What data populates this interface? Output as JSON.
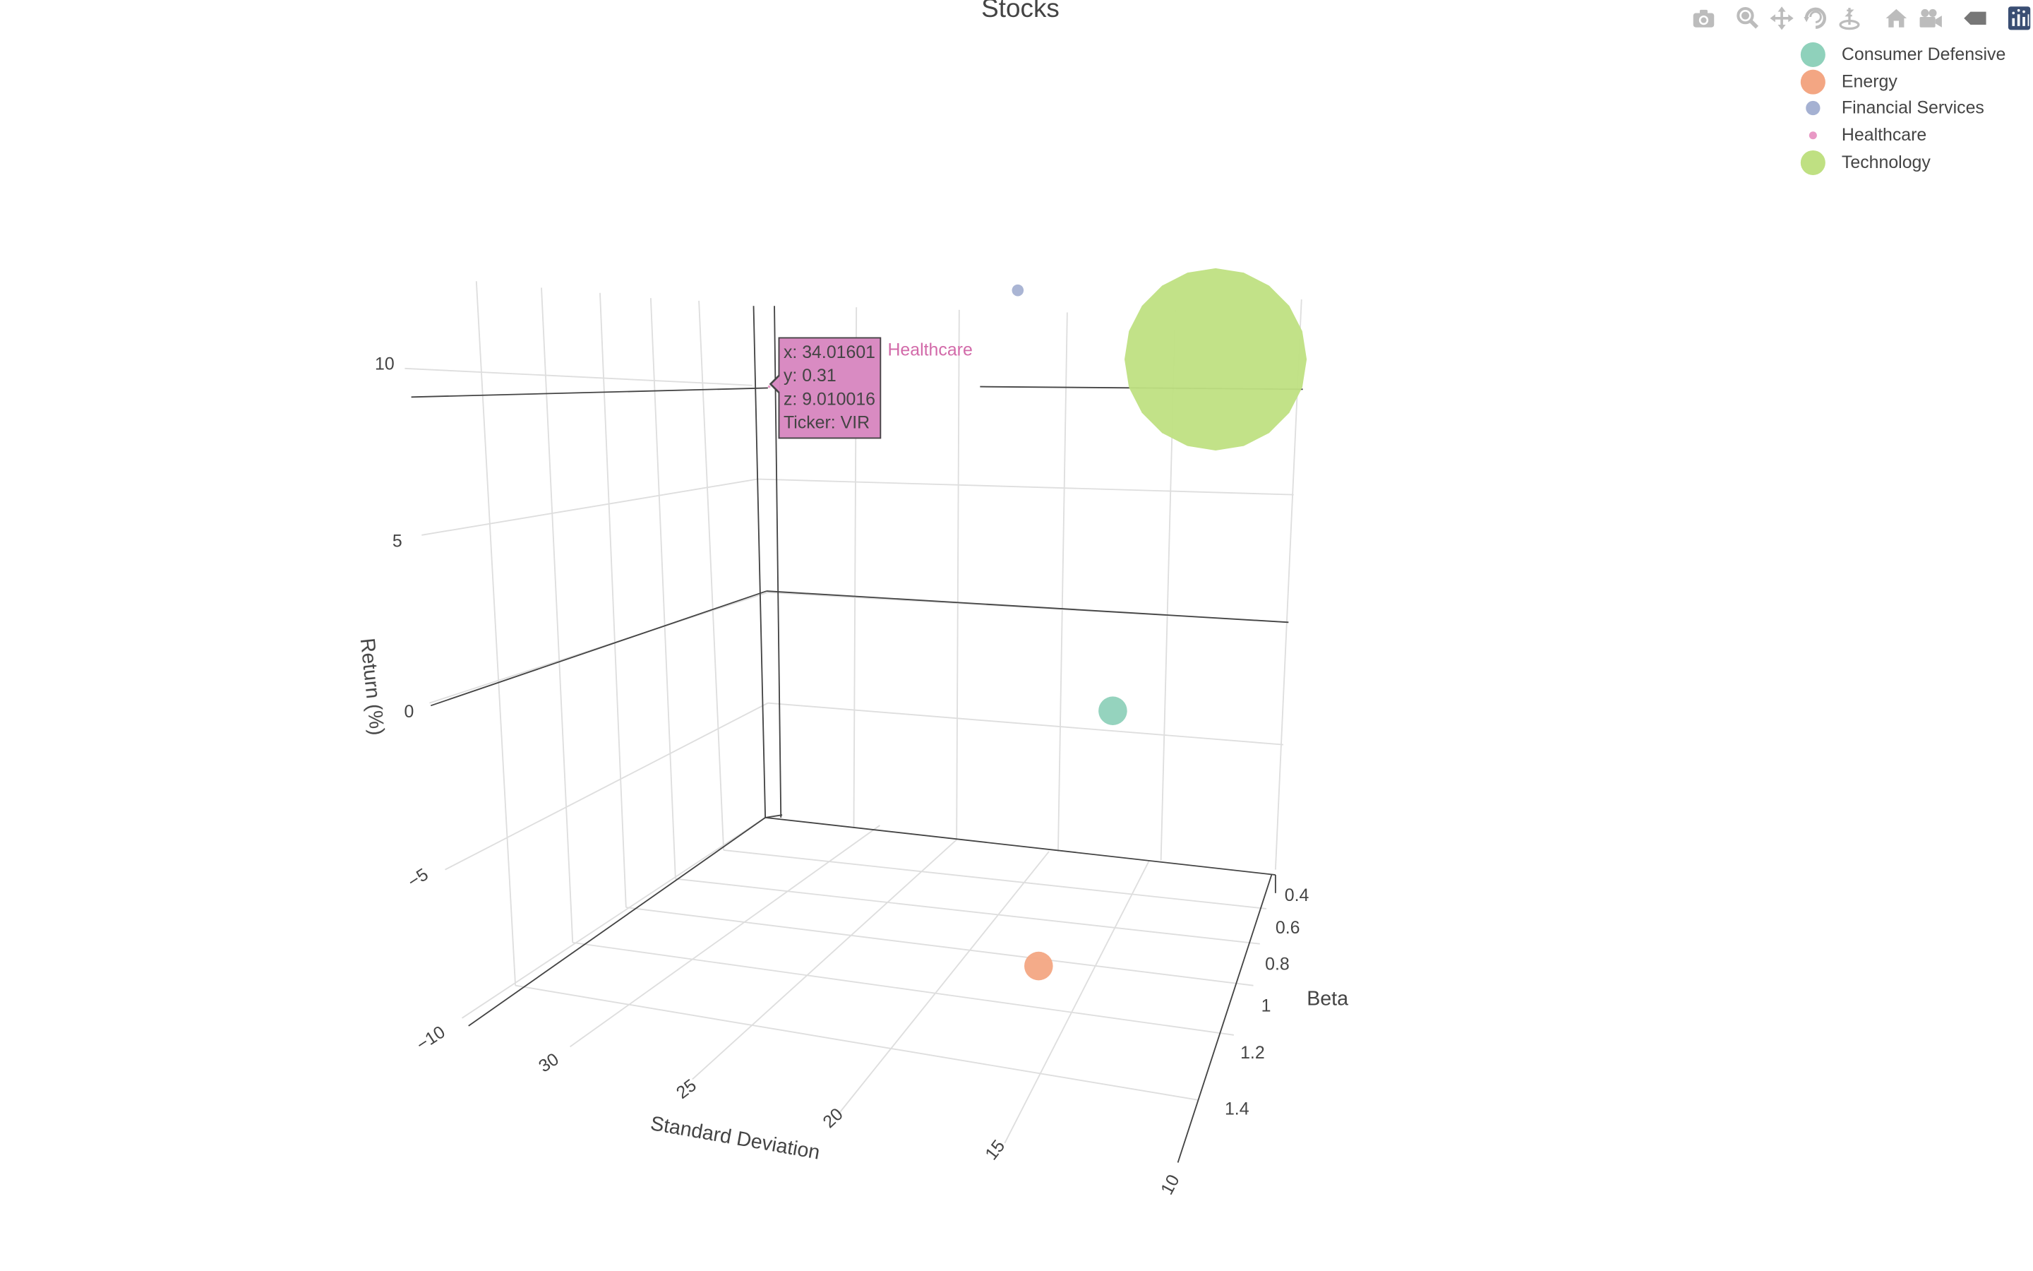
{
  "chart_data": {
    "type": "scatter",
    "title": "Stocks",
    "xlabel": "Standard Deviation",
    "ylabel": "Beta",
    "zlabel": "Return (%)",
    "xlim": [
      10,
      35
    ],
    "ylim": [
      0.3,
      1.5
    ],
    "zlim": [
      -10,
      12
    ],
    "x_ticks": [
      "10",
      "15",
      "20",
      "25",
      "30"
    ],
    "y_ticks": [
      "0.4",
      "0.6",
      "0.8",
      "1",
      "1.2",
      "1.4"
    ],
    "z_ticks": [
      "−10",
      "−5",
      "0",
      "5",
      "10"
    ],
    "grid": true,
    "legend_position": "top-right",
    "series": [
      {
        "name": "Consumer Defensive",
        "color": "#8fd1bb",
        "marker_size": 22,
        "points": [
          {
            "x": 12.6,
            "y": 0.7,
            "z": 0.6
          }
        ]
      },
      {
        "name": "Energy",
        "color": "#f3a683",
        "marker_size": 22,
        "points": [
          {
            "x": 14,
            "y": 1.3,
            "z": -2.6
          }
        ]
      },
      {
        "name": "Financial Services",
        "color": "#a5b1d2",
        "marker_size": 9,
        "points": [
          {
            "x": 23.4,
            "y": 0.68,
            "z": 13
          }
        ]
      },
      {
        "name": "Healthcare",
        "color": "#e898c5",
        "marker_size": 2,
        "points": [
          {
            "x": 34.01601,
            "y": 0.31,
            "z": 9.010016,
            "ticker": "VIR"
          }
        ]
      },
      {
        "name": "Technology",
        "color": "#bfe082",
        "marker_size": 140,
        "points": [
          {
            "x": 10.3,
            "y": 0.5,
            "z": 9.3
          }
        ]
      }
    ]
  },
  "legend": {
    "items": [
      {
        "label": "Consumer Defensive",
        "color": "#8fd1bb",
        "dot": 19
      },
      {
        "label": "Energy",
        "color": "#f3a683",
        "dot": 19
      },
      {
        "label": "Financial Services",
        "color": "#a5b1d2",
        "dot": 11
      },
      {
        "label": "Healthcare",
        "color": "#e898c5",
        "dot": 6
      },
      {
        "label": "Technology",
        "color": "#bfe082",
        "dot": 19
      }
    ]
  },
  "hover": {
    "x_line": "x: 34.01601",
    "y_line": "y: 0.31",
    "z_line": "z: 9.010016",
    "ticker_line": "Ticker: VIR",
    "series_name": "Healthcare"
  },
  "modebar": {
    "icons": [
      "camera-icon",
      "zoom-icon",
      "pan-icon",
      "orbit-rotation-icon",
      "turntable-rotation-icon",
      "reset-camera-home-icon",
      "camera-view-icon",
      "hover-closest-icon",
      "plotly-logo-icon"
    ]
  }
}
